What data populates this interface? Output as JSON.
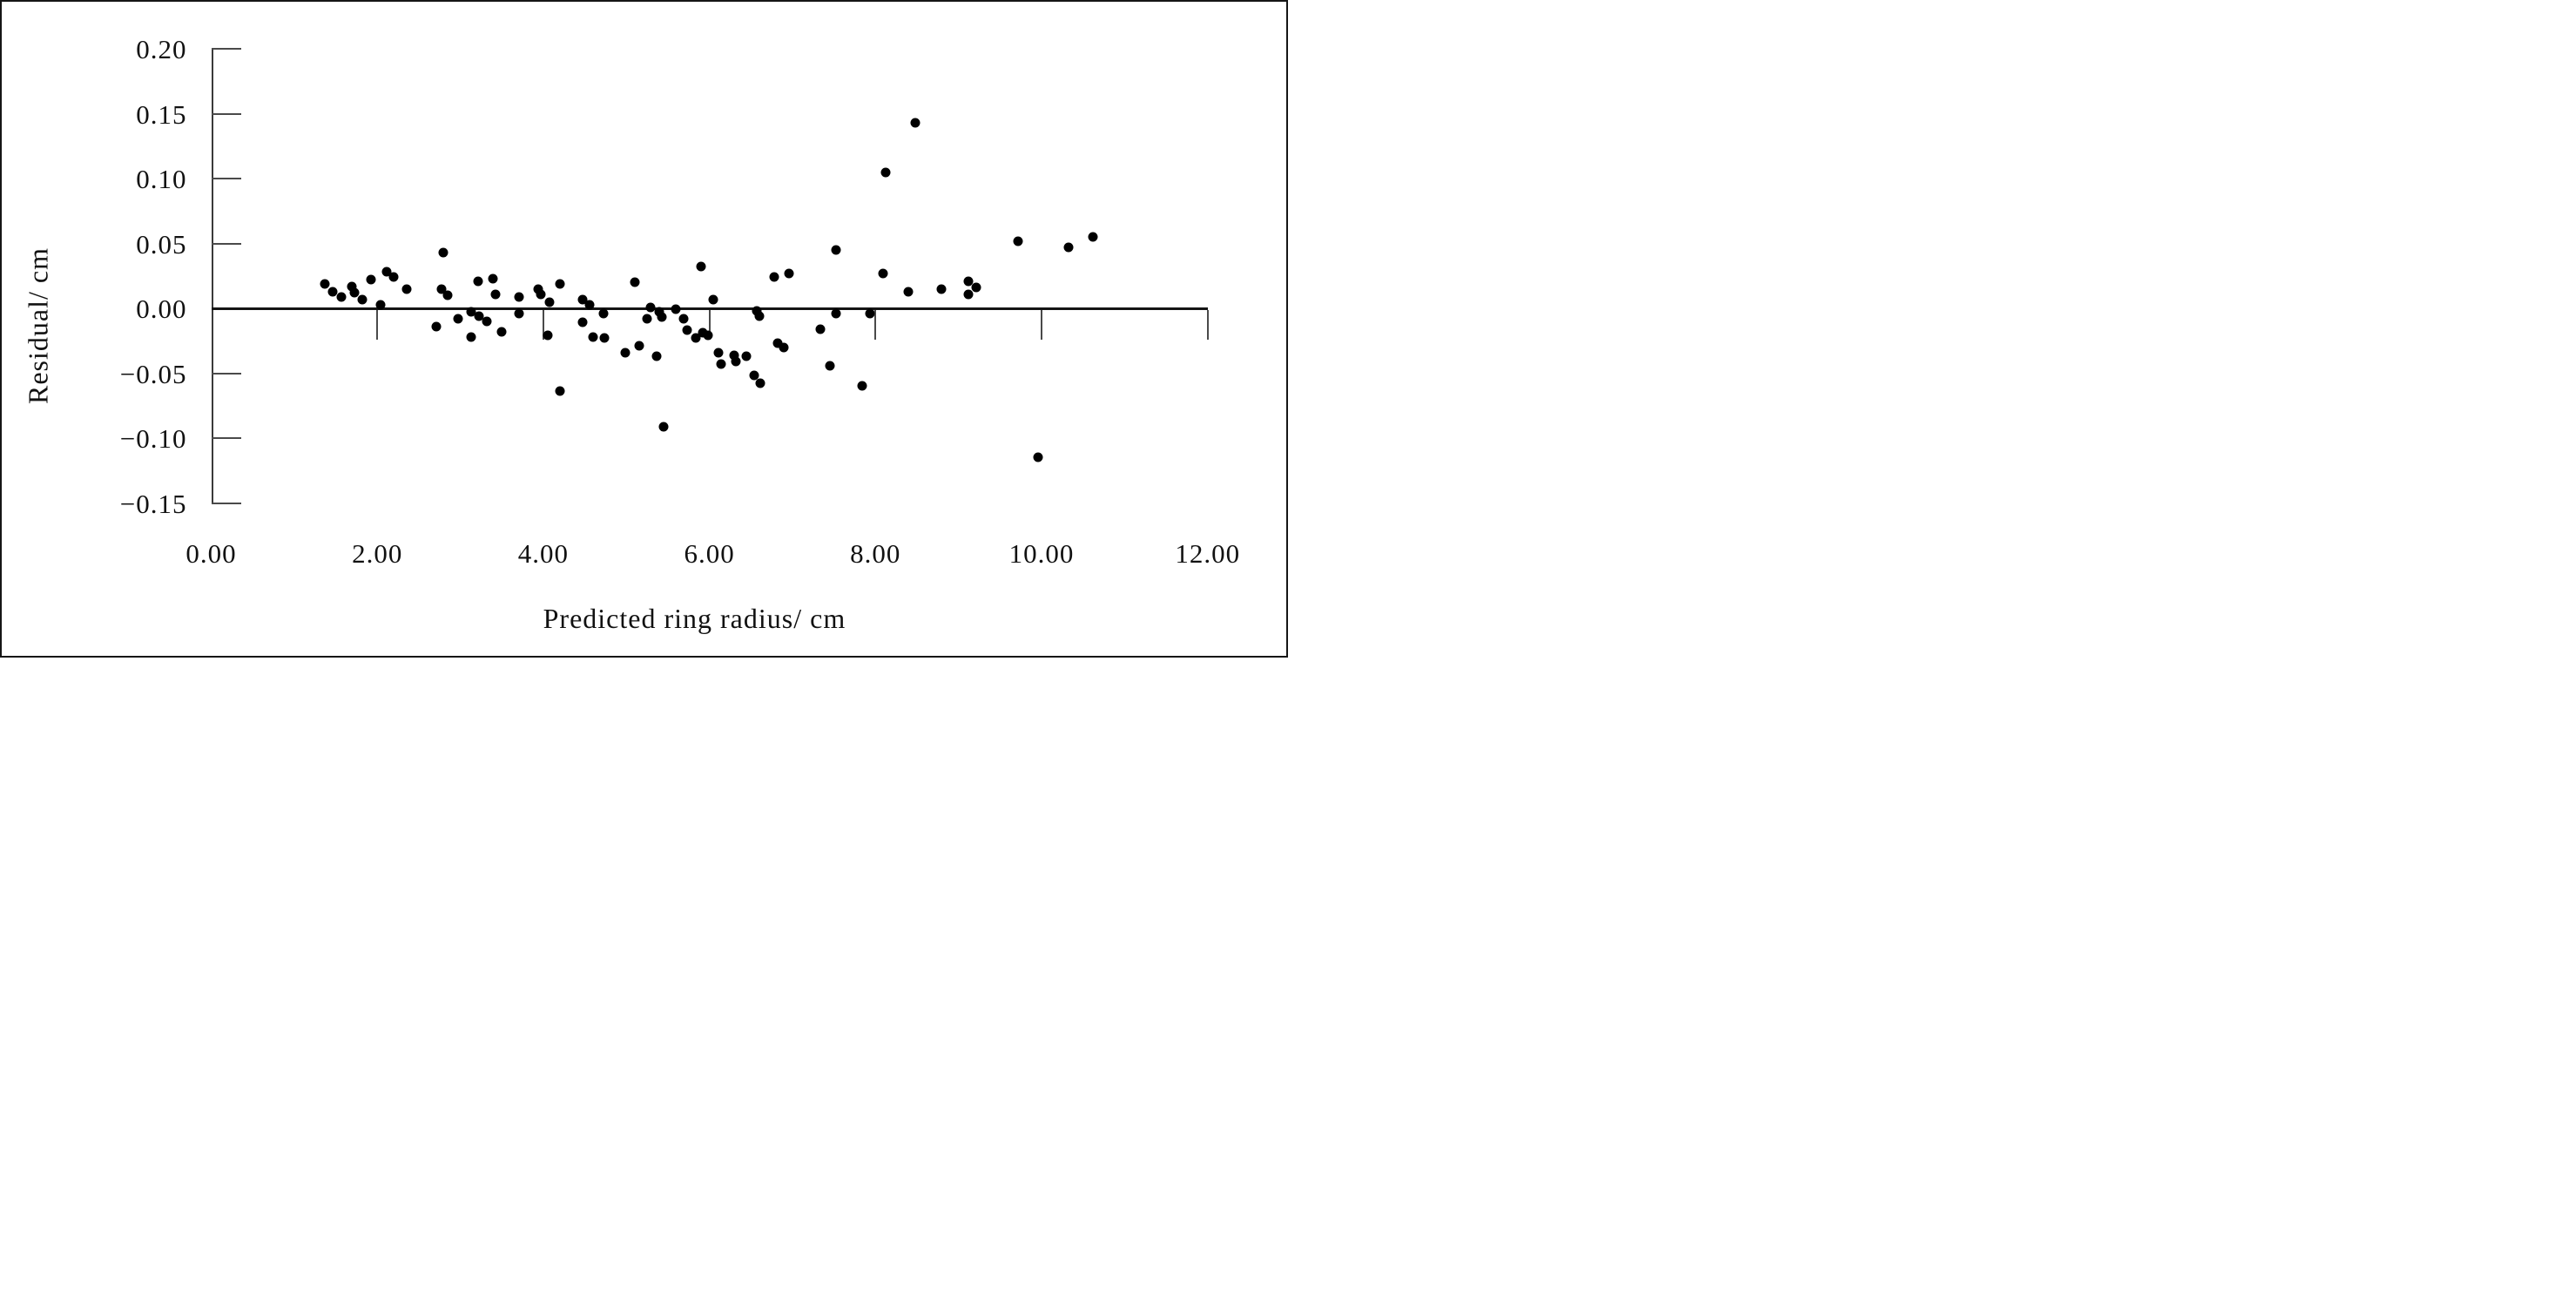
{
  "figure": {
    "background": "#ffffff",
    "frame_color": "#151515",
    "axis_color": "#3a3a3a",
    "zero_line_color": "#151515",
    "dot_color": "#000000",
    "text_color": "#111111"
  },
  "chart_data": {
    "type": "scatter",
    "title": "",
    "xlabel": "Predicted ring radius/ cm",
    "ylabel": "Residual/ cm",
    "xlim": [
      0,
      12
    ],
    "ylim": [
      -0.15,
      0.2
    ],
    "grid": false,
    "legend": null,
    "marker": "filled-black-circle",
    "x_ticks": [
      {
        "value": 0,
        "label": "0.00"
      },
      {
        "value": 2,
        "label": "2.00"
      },
      {
        "value": 4,
        "label": "4.00"
      },
      {
        "value": 6,
        "label": "6.00"
      },
      {
        "value": 8,
        "label": "8.00"
      },
      {
        "value": 10,
        "label": "10.00"
      },
      {
        "value": 12,
        "label": "12.00"
      }
    ],
    "y_ticks": [
      {
        "value": 0.2,
        "label": "0.20"
      },
      {
        "value": 0.15,
        "label": "0.15"
      },
      {
        "value": 0.1,
        "label": "0.10"
      },
      {
        "value": 0.05,
        "label": "0.05"
      },
      {
        "value": 0.0,
        "label": "0.00"
      },
      {
        "value": -0.05,
        "label": "−0.05"
      },
      {
        "value": -0.1,
        "label": "−0.10"
      },
      {
        "value": -0.15,
        "label": "−0.15"
      }
    ],
    "points": [
      [
        1.37,
        0.019
      ],
      [
        1.46,
        0.013
      ],
      [
        1.57,
        0.009
      ],
      [
        1.69,
        0.017
      ],
      [
        1.72,
        0.012
      ],
      [
        1.82,
        0.007
      ],
      [
        1.92,
        0.022
      ],
      [
        2.04,
        0.003
      ],
      [
        2.11,
        0.028
      ],
      [
        2.2,
        0.024
      ],
      [
        2.35,
        0.015
      ],
      [
        2.71,
        -0.014
      ],
      [
        2.77,
        0.015
      ],
      [
        2.8,
        0.043
      ],
      [
        2.85,
        0.01
      ],
      [
        2.97,
        -0.008
      ],
      [
        3.13,
        -0.003
      ],
      [
        3.13,
        -0.022
      ],
      [
        3.21,
        0.021
      ],
      [
        3.23,
        -0.006
      ],
      [
        3.32,
        -0.01
      ],
      [
        3.39,
        0.023
      ],
      [
        3.42,
        0.011
      ],
      [
        3.5,
        -0.018
      ],
      [
        3.71,
        0.009
      ],
      [
        3.71,
        -0.004
      ],
      [
        3.94,
        0.015
      ],
      [
        3.97,
        0.011
      ],
      [
        4.05,
        -0.021
      ],
      [
        4.07,
        0.005
      ],
      [
        4.2,
        0.019
      ],
      [
        4.2,
        -0.064
      ],
      [
        4.47,
        0.007
      ],
      [
        4.47,
        -0.011
      ],
      [
        4.56,
        0.003
      ],
      [
        4.6,
        -0.022
      ],
      [
        4.72,
        -0.004
      ],
      [
        4.74,
        -0.023
      ],
      [
        4.99,
        -0.034
      ],
      [
        5.1,
        0.02
      ],
      [
        5.15,
        -0.029
      ],
      [
        5.25,
        -0.008
      ],
      [
        5.29,
        0.001
      ],
      [
        5.36,
        -0.037
      ],
      [
        5.4,
        -0.003
      ],
      [
        5.43,
        -0.007
      ],
      [
        5.45,
        -0.091
      ],
      [
        5.6,
        -0.001
      ],
      [
        5.69,
        -0.008
      ],
      [
        5.73,
        -0.017
      ],
      [
        5.84,
        -0.023
      ],
      [
        5.9,
        0.032
      ],
      [
        5.92,
        -0.019
      ],
      [
        5.98,
        -0.021
      ],
      [
        6.05,
        0.007
      ],
      [
        6.11,
        -0.034
      ],
      [
        6.14,
        -0.043
      ],
      [
        6.3,
        -0.036
      ],
      [
        6.32,
        -0.041
      ],
      [
        6.44,
        -0.037
      ],
      [
        6.54,
        -0.052
      ],
      [
        6.61,
        -0.058
      ],
      [
        6.57,
        -0.002
      ],
      [
        6.6,
        -0.006
      ],
      [
        6.78,
        0.024
      ],
      [
        6.82,
        -0.027
      ],
      [
        6.9,
        -0.03
      ],
      [
        6.96,
        0.027
      ],
      [
        7.34,
        -0.016
      ],
      [
        7.45,
        -0.044
      ],
      [
        7.52,
        -0.004
      ],
      [
        7.53,
        0.045
      ],
      [
        7.84,
        -0.06
      ],
      [
        7.93,
        -0.004
      ],
      [
        8.09,
        0.027
      ],
      [
        8.12,
        0.105
      ],
      [
        8.4,
        0.013
      ],
      [
        8.48,
        0.143
      ],
      [
        8.79,
        0.015
      ],
      [
        9.12,
        0.021
      ],
      [
        9.12,
        0.011
      ],
      [
        9.21,
        0.016
      ],
      [
        9.72,
        0.052
      ],
      [
        9.96,
        -0.115
      ],
      [
        10.32,
        0.047
      ],
      [
        10.62,
        0.055
      ]
    ]
  }
}
